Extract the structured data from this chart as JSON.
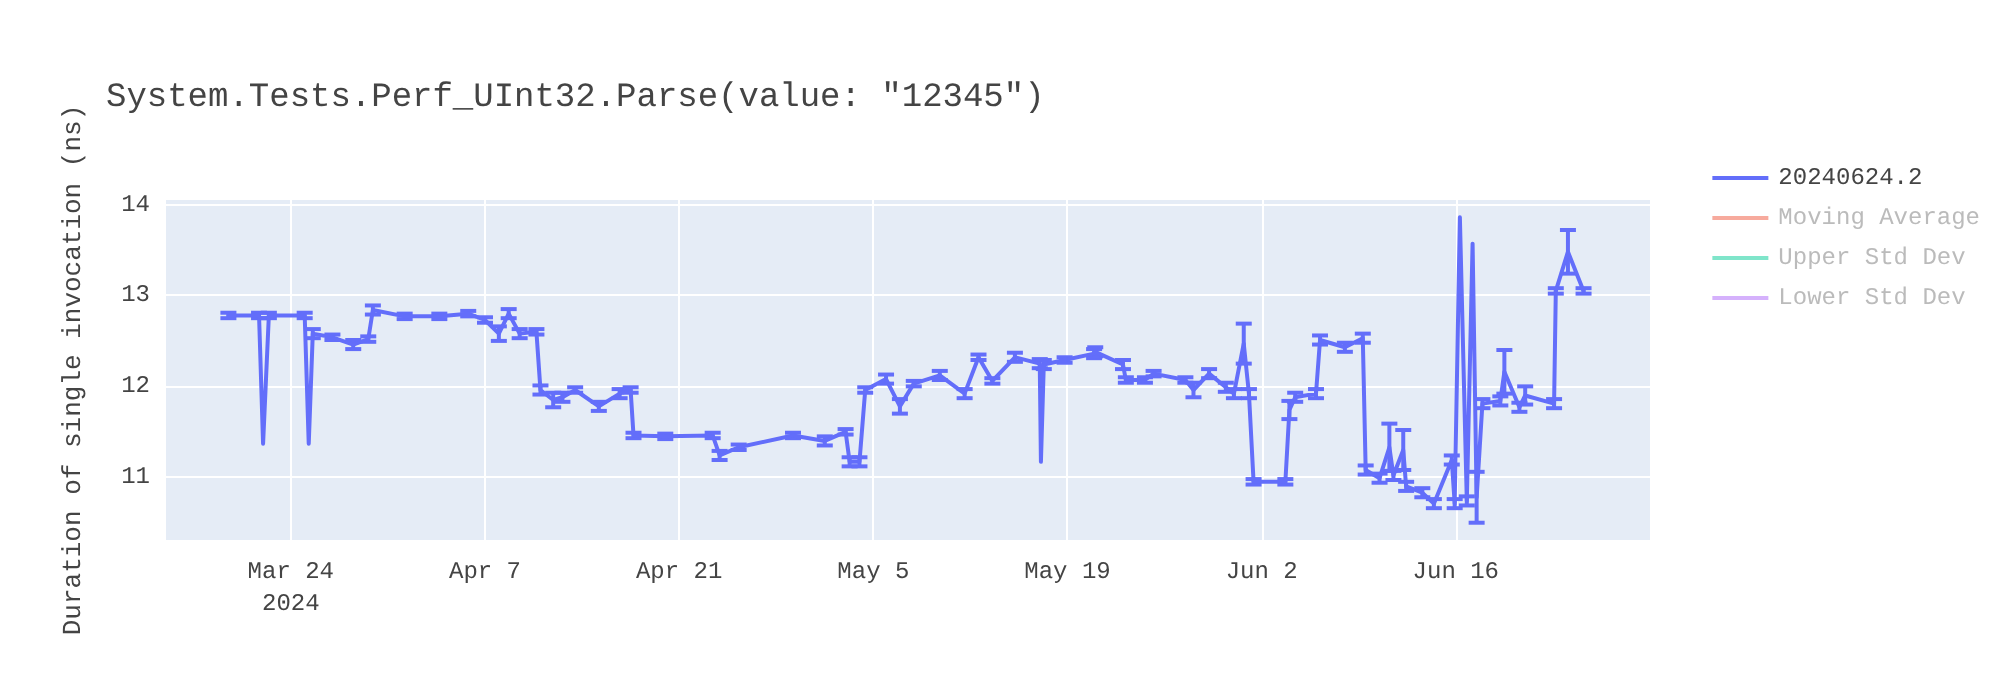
{
  "chart_data": {
    "type": "line",
    "title": "System.Tests.Perf_UInt32.Parse(value: \"12345\")",
    "ylabel": "Duration of single invocation (ns)",
    "xlim": [
      "2024-03-15",
      "2024-06-30"
    ],
    "xticks": [
      {
        "value": "2024-03-24",
        "label": "Mar 24\n2024"
      },
      {
        "value": "2024-04-07",
        "label": "Apr 7"
      },
      {
        "value": "2024-04-21",
        "label": "Apr 21"
      },
      {
        "value": "2024-05-05",
        "label": "May 5"
      },
      {
        "value": "2024-05-19",
        "label": "May 19"
      },
      {
        "value": "2024-06-02",
        "label": "Jun 2"
      },
      {
        "value": "2024-06-16",
        "label": "Jun 16"
      }
    ],
    "ylim": [
      10.31,
      14.05
    ],
    "yticks": [
      11,
      12,
      13,
      14
    ],
    "grid": true,
    "legend": "top right",
    "marker": "none",
    "series": [
      {
        "name": "20240624.2",
        "color": "#636efa",
        "x": [
          "2024-03-19T12:00",
          "2024-03-21T17:00",
          "2024-03-22T00:00",
          "2024-03-22T10:00",
          "2024-03-25T00:00",
          "2024-03-25T07:00",
          "2024-03-25T14:00",
          "2024-03-27T00:00",
          "2024-03-28T12:00",
          "2024-03-29T14:00",
          "2024-03-29T22:00",
          "2024-04-01T05:00",
          "2024-04-03T17:00",
          "2024-04-05T19:00",
          "2024-04-07T00:00",
          "2024-04-08T00:00",
          "2024-04-08T17:00",
          "2024-04-09T12:00",
          "2024-04-10T17:00",
          "2024-04-11T00:00",
          "2024-04-11T22:00",
          "2024-04-12T14:00",
          "2024-04-13T12:00",
          "2024-04-15T05:00",
          "2024-04-16T17:00",
          "2024-04-17T12:00",
          "2024-04-17T17:00",
          "2024-04-20T00:00",
          "2024-04-23T10:00",
          "2024-04-23T22:00",
          "2024-04-25T07:00",
          "2024-04-29T05:00",
          "2024-05-01T12:00",
          "2024-05-03T00:00",
          "2024-05-03T07:00",
          "2024-05-04T00:00",
          "2024-05-04T10:00",
          "2024-05-05T22:00",
          "2024-05-06T22:00",
          "2024-05-07T22:00",
          "2024-05-09T19:00",
          "2024-05-11T14:00",
          "2024-05-12T14:00",
          "2024-05-13T14:00",
          "2024-05-15T05:00",
          "2024-05-17T00:00",
          "2024-05-17T02:00",
          "2024-05-17T07:00",
          "2024-05-18T19:00",
          "2024-05-20T22:00",
          "2024-05-21T00:00",
          "2024-05-23T00:00",
          "2024-05-23T05:00",
          "2024-05-24T14:00",
          "2024-05-25T05:00",
          "2024-05-27T12:00",
          "2024-05-28T02:00",
          "2024-05-29T05:00",
          "2024-05-30T10:00",
          "2024-05-31T00:00",
          "2024-05-31T17:00",
          "2024-06-01T02:00",
          "2024-06-01T10:00",
          "2024-06-03T17:00",
          "2024-06-04T00:00",
          "2024-06-04T10:00",
          "2024-06-05T22:00",
          "2024-06-06T05:00",
          "2024-06-08T00:00",
          "2024-06-09T07:00",
          "2024-06-09T12:00",
          "2024-06-10T12:00",
          "2024-06-11T05:00",
          "2024-06-11T12:00",
          "2024-06-12T05:00",
          "2024-06-12T10:00",
          "2024-06-13T14:00",
          "2024-06-14T10:00",
          "2024-06-15T17:00",
          "2024-06-15T22:00",
          "2024-06-16T07:00",
          "2024-06-16T19:00",
          "2024-06-17T05:00",
          "2024-06-17T12:00",
          "2024-06-17T22:00",
          "2024-06-19T05:00",
          "2024-06-19T12:00",
          "2024-06-20T14:00",
          "2024-06-21T00:00",
          "2024-06-23T02:00",
          "2024-06-23T05:00",
          "2024-06-24T02:00",
          "2024-06-25T05:00"
        ],
        "values": [
          12.78,
          12.78,
          11.37,
          12.78,
          12.78,
          11.37,
          12.58,
          12.54,
          12.46,
          12.52,
          12.84,
          12.77,
          12.77,
          12.8,
          12.73,
          12.58,
          12.8,
          12.58,
          12.6,
          11.96,
          11.85,
          11.88,
          11.96,
          11.78,
          11.92,
          11.96,
          11.46,
          11.45,
          11.46,
          11.24,
          11.33,
          11.46,
          11.4,
          11.5,
          11.17,
          11.17,
          11.96,
          12.08,
          11.78,
          12.03,
          12.12,
          11.92,
          12.32,
          12.06,
          12.32,
          12.25,
          11.17,
          12.24,
          12.29,
          12.36,
          12.38,
          12.24,
          12.07,
          12.07,
          12.14,
          12.07,
          11.96,
          12.14,
          11.99,
          11.92,
          12.47,
          11.92,
          10.95,
          10.95,
          11.74,
          11.88,
          11.92,
          12.51,
          12.43,
          12.53,
          11.08,
          10.99,
          11.33,
          11.02,
          11.3,
          10.9,
          10.83,
          10.71,
          11.19,
          10.71,
          13.86,
          10.74,
          13.57,
          10.78,
          11.81,
          11.84,
          12.16,
          11.77,
          11.9,
          11.81,
          13.05,
          13.48,
          13.05
        ],
        "errors": [
          0.03,
          0.03,
          null,
          0.03,
          0.03,
          null,
          0.05,
          0.03,
          0.05,
          0.03,
          0.05,
          0.03,
          0.03,
          0.03,
          0.03,
          0.08,
          0.05,
          0.05,
          0.03,
          0.05,
          0.08,
          0.05,
          0.03,
          0.05,
          0.05,
          0.03,
          0.03,
          0.03,
          0.03,
          0.05,
          0.03,
          0.03,
          0.05,
          0.03,
          0.05,
          0.05,
          0.03,
          0.05,
          0.08,
          0.03,
          0.05,
          0.05,
          0.03,
          0.03,
          0.05,
          0.05,
          null,
          0.05,
          0.03,
          0.05,
          0.05,
          0.05,
          0.03,
          0.03,
          0.03,
          0.03,
          0.08,
          0.05,
          0.05,
          0.05,
          0.22,
          0.05,
          0.03,
          0.03,
          0.1,
          0.05,
          0.05,
          0.05,
          0.05,
          0.05,
          0.05,
          0.05,
          0.26,
          0.05,
          0.22,
          0.05,
          0.05,
          0.05,
          0.05,
          0.05,
          null,
          0.05,
          null,
          0.28,
          0.05,
          0.05,
          0.24,
          0.05,
          0.1,
          0.05,
          0.03,
          0.24,
          0.03
        ]
      },
      {
        "name": "Moving Average",
        "color": "#ef553b"
      },
      {
        "name": "Upper Std Dev",
        "color": "#00cc96"
      },
      {
        "name": "Lower Std Dev",
        "color": "#ab63fa"
      }
    ]
  }
}
